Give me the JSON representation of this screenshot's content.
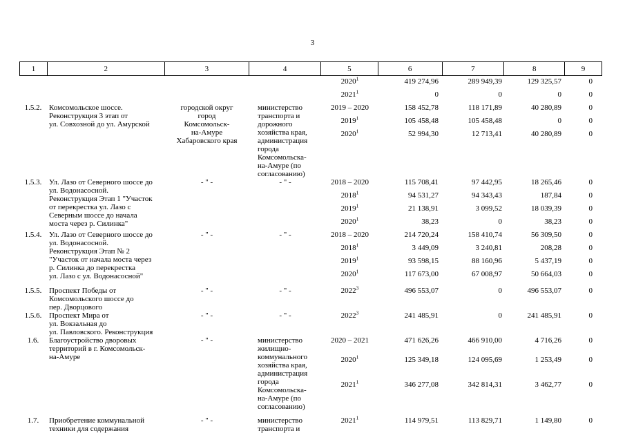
{
  "page": {
    "number": "3"
  },
  "table": {
    "header_cols": [
      "1",
      "2",
      "3",
      "4",
      "5",
      "6",
      "7",
      "8",
      "9"
    ],
    "items": [
      {
        "no": "",
        "name": "",
        "col3": "",
        "col4": "",
        "rows": [
          {
            "period": "2020",
            "sup": "1",
            "c6": "419 274,96",
            "c7": "289 949,39",
            "c8": "129 325,57",
            "c9": "0"
          },
          {
            "period": "2021",
            "sup": "1",
            "c6": "0",
            "c7": "0",
            "c8": "0",
            "c9": "0"
          }
        ]
      },
      {
        "no": "1.5.2.",
        "name": "Комсомольское шоссе.\nРеконструкция 3 этап от\nул. Совхозной до ул. Амурской",
        "col3": "городской округ\nгород\nКомсомольск-\nна-Амуре\nХабаровского края",
        "col4": "министерство\nтранспорта и\nдорожного\nхозяйства края,\nадминистрация\nгорода\nКомсомольска-\nна-Амуре (по\nсогласованию)",
        "rows": [
          {
            "period": "2019 – 2020",
            "sup": "",
            "c6": "158 452,78",
            "c7": "118 171,89",
            "c8": "40 280,89",
            "c9": "0"
          },
          {
            "period": "2019",
            "sup": "1",
            "c6": "105 458,48",
            "c7": "105 458,48",
            "c8": "0",
            "c9": "0"
          },
          {
            "period": "2020",
            "sup": "1",
            "c6": "52 994,30",
            "c7": "12 713,41",
            "c8": "40 280,89",
            "c9": "0"
          }
        ]
      },
      {
        "no": "1.5.3.",
        "name": "Ул. Лазо от Северного шоссе до\nул. Водонасосной.\nРеконструкция Этап 1 \"Участок\nот перекрестка ул. Лазо с\nСеверным шоссе до начала\nмоста через р. Силинка\"",
        "col3": "- \" -",
        "col4": "- \" -",
        "rows": [
          {
            "period": "2018 – 2020",
            "sup": "",
            "c6": "115 708,41",
            "c7": "97 442,95",
            "c8": "18 265,46",
            "c9": "0"
          },
          {
            "period": "2018",
            "sup": "1",
            "c6": "94 531,27",
            "c7": "94 343,43",
            "c8": "187,84",
            "c9": "0"
          },
          {
            "period": "2019",
            "sup": "1",
            "c6": "21 138,91",
            "c7": "3 099,52",
            "c8": "18 039,39",
            "c9": "0"
          },
          {
            "period": "2020",
            "sup": "1",
            "c6": "38,23",
            "c7": "0",
            "c8": "38,23",
            "c9": "0"
          }
        ]
      },
      {
        "no": "1.5.4.",
        "name": "Ул. Лазо от Северного шоссе до\nул. Водонасосной.\nРеконструкция Этап № 2\n\"Участок от начала моста через\nр. Силинка до перекрестка\nул. Лазо с ул. Водонасосной\"",
        "col3": "- \" -",
        "col4": "- \" -",
        "rows": [
          {
            "period": "2018 – 2020",
            "sup": "",
            "c6": "214 720,24",
            "c7": "158 410,74",
            "c8": "56 309,50",
            "c9": "0"
          },
          {
            "period": "2018",
            "sup": "1",
            "c6": "3 449,09",
            "c7": "3 240,81",
            "c8": "208,28",
            "c9": "0"
          },
          {
            "period": "2019",
            "sup": "1",
            "c6": "93 598,15",
            "c7": "88 160,96",
            "c8": "5 437,19",
            "c9": "0"
          },
          {
            "period": "2020",
            "sup": "1",
            "c6": "117 673,00",
            "c7": "67 008,97",
            "c8": "50 664,03",
            "c9": "0"
          }
        ]
      },
      {
        "no": "1.5.5.",
        "name": "Проспект Победы от\nКомсомольского шоссе до\nпер. Дворцового",
        "col3": "- \" -",
        "col4": "- \" -",
        "rows": [
          {
            "period": "2022",
            "sup": "3",
            "c6": "496 553,07",
            "c7": "0",
            "c8": "496 553,07",
            "c9": "0"
          }
        ]
      },
      {
        "no": "1.5.6.",
        "name": "Проспект Мира от\nул. Вокзальная до\nул. Павловского. Реконструкция",
        "col3": "- \" -",
        "col4": "- \" -",
        "rows": [
          {
            "period": "2022",
            "sup": "3",
            "c6": "241 485,91",
            "c7": "0",
            "c8": "241 485,91",
            "c9": "0"
          }
        ]
      },
      {
        "no": "1.6.",
        "name": "Благоустройство дворовых\nтерриторий в г. Комсомольск-\nна-Амуре",
        "col3": "- \" -",
        "col4": "министерство\nжилищно-\nкоммунального\nхозяйства края,\nадминистрация\nгорода\nКомсомольска-\nна-Амуре (по\nсогласованию)",
        "rows": [
          {
            "period": "2020 – 2021",
            "sup": "",
            "c6": "471 626,26",
            "c7": "466 910,00",
            "c8": "4 716,26",
            "c9": "0"
          },
          {
            "period": "2020",
            "sup": "1",
            "c6": "125 349,18",
            "c7": "124 095,69",
            "c8": "1 253,49",
            "c9": "0"
          },
          {
            "period": "2021",
            "sup": "1",
            "c6": "346 277,08",
            "c7": "342 814,31",
            "c8": "3 462,77",
            "c9": "0"
          }
        ]
      },
      {
        "no": "1.7.",
        "name": "Приобретение коммунальной\nтехники для содержания",
        "col3": "- \" -",
        "col4": "министерство\nтранспорта и",
        "rows": [
          {
            "period": "2021",
            "sup": "1",
            "c6": "114 979,51",
            "c7": "113 829,71",
            "c8": "1 149,80",
            "c9": "0"
          }
        ]
      }
    ]
  }
}
